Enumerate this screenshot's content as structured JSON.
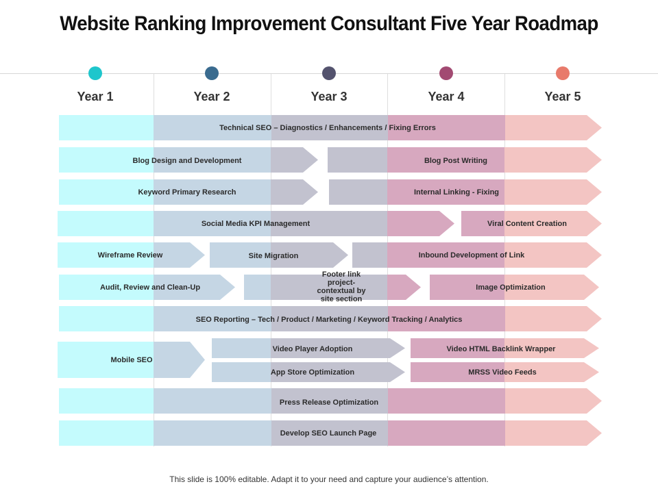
{
  "title": "Website Ranking Improvement Consultant Five Year Roadmap",
  "years": [
    {
      "label": "Year 1",
      "color": "#1ec6cc"
    },
    {
      "label": "Year 2",
      "color": "#3a6b8f"
    },
    {
      "label": "Year 3",
      "color": "#54536e"
    },
    {
      "label": "Year 4",
      "color": "#a24a72"
    },
    {
      "label": "Year 5",
      "color": "#e87a6b"
    }
  ],
  "tasks": {
    "technical_seo": "Technical SEO – Diagnostics / Enhancements / Fixing Errors",
    "blog_design": "Blog Design and Development",
    "blog_post_writing": "Blog Post Writing",
    "keyword_research": "Keyword Primary Research",
    "internal_linking": "Internal Linking - Fixing",
    "social_media_kpi": "Social Media KPI Management",
    "viral_content": "Viral Content Creation",
    "wireframe_review": "Wireframe Review",
    "site_migration": "Site Migration",
    "inbound_link": "Inbound Development of Link",
    "audit_review": "Audit, Review and Clean-Up",
    "footer_link": "Footer link project-contextual by site section",
    "image_optimization": "Image Optimization",
    "seo_reporting": "SEO Reporting – Tech / Product / Marketing / Keyword Tracking / Analytics",
    "mobile_seo": "Mobile SEO",
    "video_player": "Video Player Adoption",
    "video_html_backlink": "Video HTML Backlink Wrapper",
    "app_store": "App Store Optimization",
    "mrss_feeds": "MRSS Video Feeds",
    "press_release": "Press Release Optimization",
    "seo_launch": "Develop SEO Launch Page"
  },
  "footer": "This slide is 100% editable. Adapt it to your need and capture your audience’s attention."
}
